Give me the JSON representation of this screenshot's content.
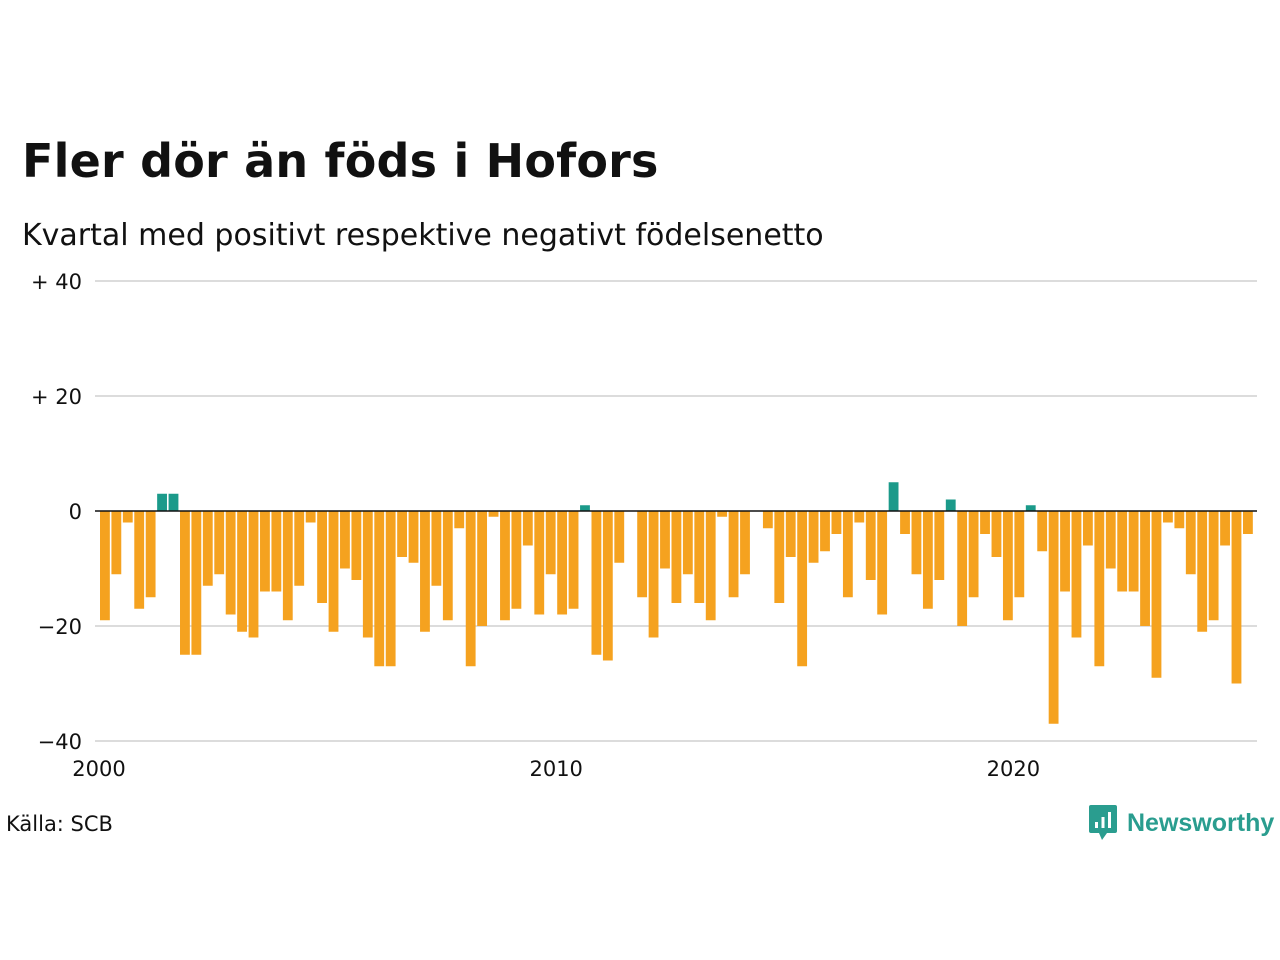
{
  "colors": {
    "positive": "#1b9a8a",
    "negative": "#f5a21f",
    "grid": "#dcdcdc",
    "zero_line": "#111111",
    "brand": "#2a9d8f"
  },
  "chart_data": {
    "type": "bar",
    "title": "Fler dör än föds i Hofors",
    "subtitle": "Kvartal med positivt respektive negativt födelsenetto",
    "xlabel": "",
    "ylabel": "",
    "ylim": [
      -40,
      40
    ],
    "y_ticks": [
      {
        "value": 40,
        "label": "+ 40"
      },
      {
        "value": 20,
        "label": "+ 20"
      },
      {
        "value": 0,
        "label": "0"
      },
      {
        "value": -20,
        "label": "−20"
      },
      {
        "value": -40,
        "label": "−40"
      }
    ],
    "x_ticks": [
      {
        "value": 2000,
        "label": "2000"
      },
      {
        "value": 2010,
        "label": "2010"
      },
      {
        "value": 2020,
        "label": "2020"
      }
    ],
    "x_start": 2000.0,
    "period": "quarter",
    "grid": true,
    "legend": "none",
    "values": [
      -19,
      -11,
      -2,
      -17,
      -15,
      3,
      3,
      -25,
      -25,
      -13,
      -11,
      -18,
      -21,
      -22,
      -14,
      -14,
      -19,
      -13,
      -2,
      -16,
      -21,
      -10,
      -12,
      -22,
      -27,
      -27,
      -8,
      -9,
      -21,
      -13,
      -19,
      -3,
      -27,
      -20,
      -1,
      -19,
      -17,
      -6,
      -18,
      -11,
      -18,
      -17,
      1,
      -25,
      -26,
      -9,
      0,
      -15,
      -22,
      -10,
      -16,
      -11,
      -16,
      -19,
      -1,
      -15,
      -11,
      0,
      -3,
      -16,
      -8,
      -27,
      -9,
      -7,
      -4,
      -15,
      -2,
      -12,
      -18,
      5,
      -4,
      -11,
      -17,
      -12,
      2,
      -20,
      -15,
      -4,
      -8,
      -19,
      -15,
      1,
      -7,
      -37,
      -14,
      -22,
      -6,
      -27,
      -10,
      -14,
      -14,
      -20,
      -29,
      -2,
      -3,
      -11,
      -21,
      -19,
      -6,
      -30,
      -4
    ]
  },
  "footer": {
    "source": "Källa: SCB",
    "brand_name": "Newsworthy"
  }
}
